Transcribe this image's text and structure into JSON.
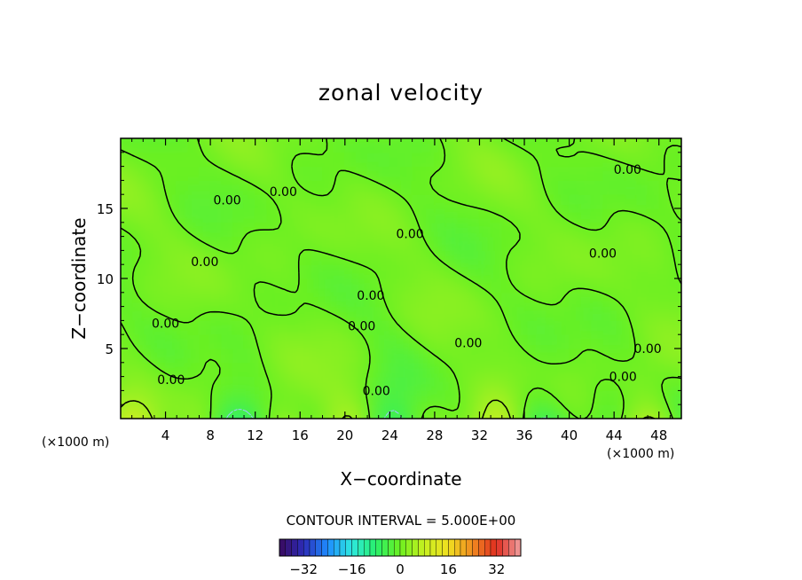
{
  "chart_data": {
    "type": "heatmap",
    "title": "zonal velocity",
    "xlabel": "X−coordinate",
    "ylabel": "Z−coordinate",
    "x_unit": "(×1000 m)",
    "y_unit": "(×1000 m)",
    "x_range": [
      0,
      50
    ],
    "y_range": [
      0,
      20
    ],
    "x_ticks": [
      "4",
      "8",
      "12",
      "16",
      "20",
      "24",
      "28",
      "32",
      "36",
      "40",
      "44",
      "48"
    ],
    "y_ticks": [
      "5",
      "10",
      "15"
    ],
    "x_tick_values": [
      4,
      8,
      12,
      16,
      20,
      24,
      28,
      32,
      36,
      40,
      44,
      48
    ],
    "y_tick_values": [
      5,
      10,
      15
    ],
    "contour_interval_text": "CONTOUR INTERVAL = 5.000E+00",
    "contour_interval": 5,
    "contour_labels": [
      {
        "text": "0.00",
        "x": 9.5,
        "y": 15.6
      },
      {
        "text": "0.00",
        "x": 14.5,
        "y": 16.2
      },
      {
        "text": "0.00",
        "x": 45.2,
        "y": 17.8
      },
      {
        "text": "0.00",
        "x": 25.8,
        "y": 13.2
      },
      {
        "text": "0.00",
        "x": 43.0,
        "y": 11.8
      },
      {
        "text": "0.00",
        "x": 7.5,
        "y": 11.2
      },
      {
        "text": "0.00",
        "x": 22.3,
        "y": 8.8
      },
      {
        "text": "0.00",
        "x": 4.0,
        "y": 6.8
      },
      {
        "text": "0.00",
        "x": 21.5,
        "y": 6.6
      },
      {
        "text": "0.00",
        "x": 31.0,
        "y": 5.4
      },
      {
        "text": "0.00",
        "x": 47.0,
        "y": 5.0
      },
      {
        "text": "0.00",
        "x": 44.8,
        "y": 3.0
      },
      {
        "text": "0.00",
        "x": 4.5,
        "y": 2.8
      },
      {
        "text": "0.00",
        "x": 22.8,
        "y": 2.0
      }
    ],
    "colorbar": {
      "range": [
        -40,
        40
      ],
      "ticks": [
        "−32",
        "−16",
        "0",
        "16",
        "32"
      ],
      "tick_values": [
        -32,
        -16,
        0,
        16,
        32
      ]
    },
    "field_range": [
      -6,
      8
    ],
    "colormap": [
      "#3a0a5e",
      "#2c2cb8",
      "#1e8cff",
      "#2ee8e0",
      "#28f06a",
      "#6cf020",
      "#c8f020",
      "#f0e020",
      "#f08a20",
      "#e02c20",
      "#f0a0a0"
    ]
  }
}
